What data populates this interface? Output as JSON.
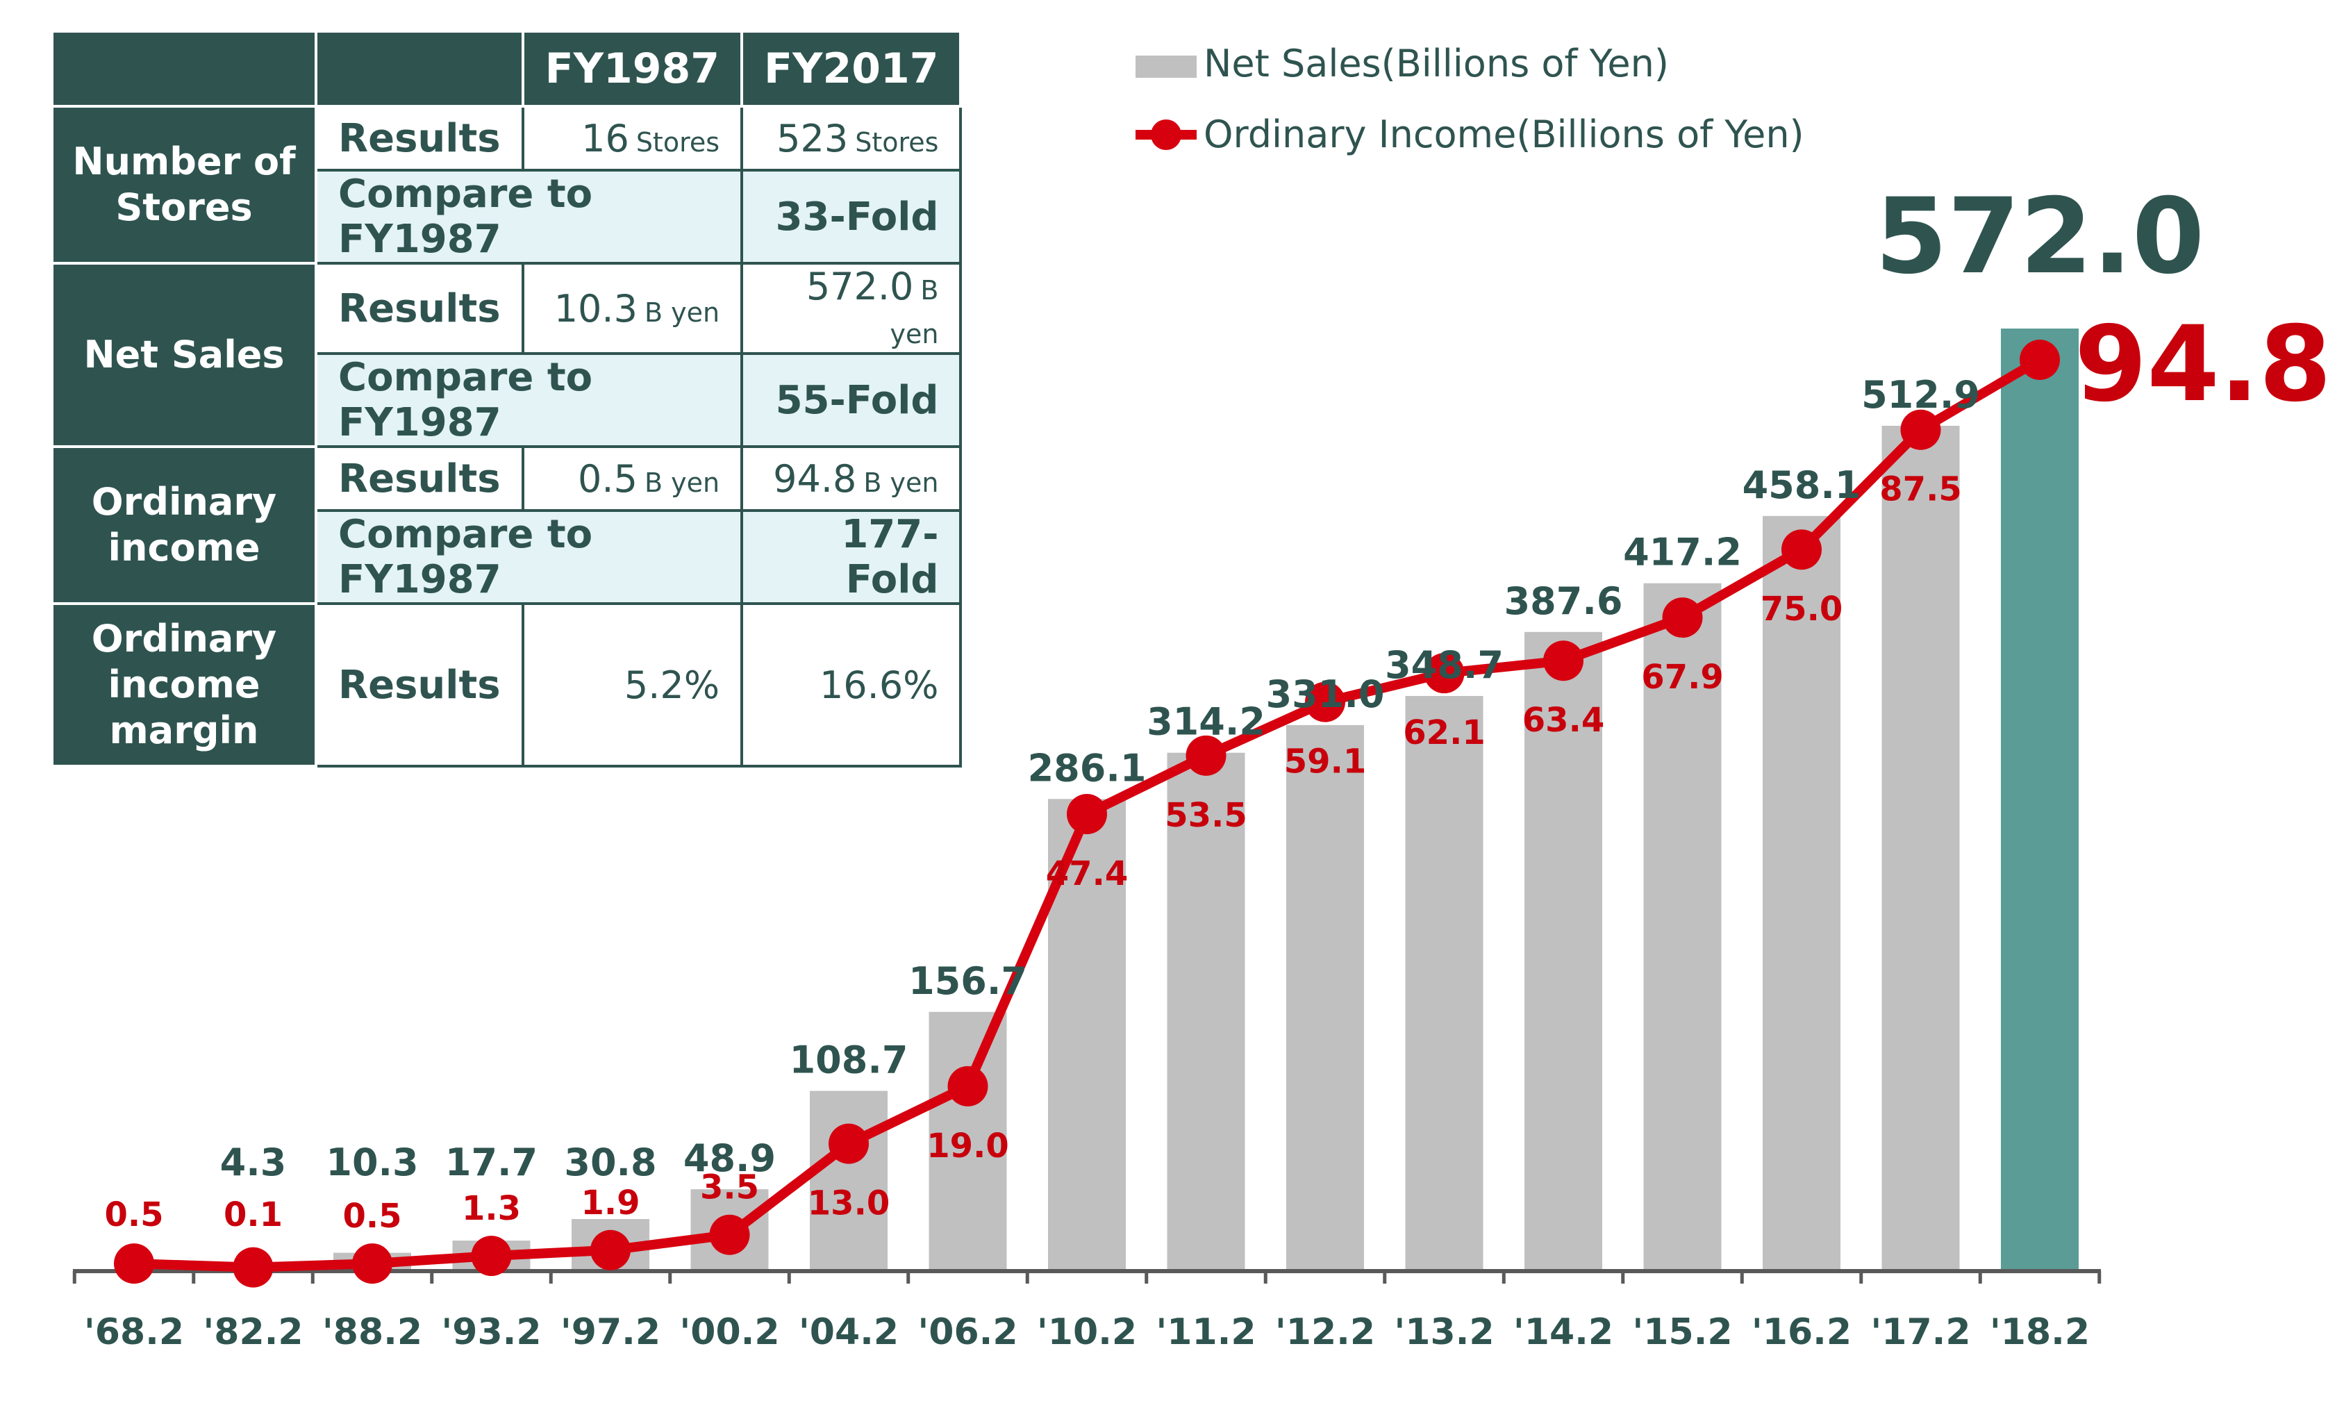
{
  "table": {
    "headers": [
      "",
      "",
      "FY1987",
      "FY2017"
    ],
    "rows": [
      {
        "group": "Number of Stores",
        "label": "Results",
        "fy1987": "16",
        "fy1987_unit": "Stores",
        "fy2017": "523",
        "fy2017_unit": "Stores"
      },
      {
        "label": "Compare to FY1987",
        "value": "33-Fold"
      },
      {
        "group": "Net Sales",
        "label": "Results",
        "fy1987": "10.3",
        "fy1987_unit": "B yen",
        "fy2017": "572.0",
        "fy2017_unit": "B yen"
      },
      {
        "label": "Compare to FY1987",
        "value": "55-Fold"
      },
      {
        "group": "Ordinary income",
        "label": "Results",
        "fy1987": "0.5",
        "fy1987_unit": "B yen",
        "fy2017": "94.8",
        "fy2017_unit": "B yen"
      },
      {
        "label": "Compare to FY1987",
        "value": "177-Fold"
      },
      {
        "group": "Ordinary income margin",
        "label": "Results",
        "fy1987": "5.2%",
        "fy2017": "16.6%"
      }
    ]
  },
  "chart_data": {
    "type": "bar",
    "categories": [
      "'68.2",
      "'82.2",
      "'88.2",
      "'93.2",
      "'97.2",
      "'00.2",
      "'04.2",
      "'06.2",
      "'10.2",
      "'11.2",
      "'12.2",
      "'13.2",
      "'14.2",
      "'15.2",
      "'16.2",
      "'17.2",
      "'18.2"
    ],
    "series": [
      {
        "name": "Net Sales(Billions of Yen)",
        "type": "bar",
        "values": [
          null,
          4.3,
          10.3,
          17.7,
          30.8,
          48.9,
          108.7,
          156.7,
          286.1,
          314.2,
          331.0,
          348.7,
          387.6,
          417.2,
          458.1,
          512.9,
          572.0
        ],
        "labels": [
          "",
          "4.3",
          "10.3",
          "17.7",
          "30.8",
          "48.9",
          "108.7",
          "156.7",
          "286.1",
          "314.2",
          "331.0",
          "348.7",
          "387.6",
          "417.2",
          "458.1",
          "512.9",
          "572.0"
        ],
        "color": "#c0c0c0",
        "highlight_color": "#5b9c97"
      },
      {
        "name": "Ordinary Income(Billions of Yen)",
        "type": "line",
        "values": [
          0.5,
          0.1,
          0.5,
          1.3,
          1.9,
          3.5,
          13.0,
          19.0,
          47.4,
          53.5,
          59.1,
          62.1,
          63.4,
          67.9,
          75.0,
          87.5,
          94.8
        ],
        "labels": [
          "0.5",
          "0.1",
          "0.5",
          "1.3",
          "1.9",
          "3.5",
          "13.0",
          "19.0",
          "47.4",
          "53.5",
          "59.1",
          "62.1",
          "63.4",
          "67.9",
          "75.0",
          "87.5",
          "94.8"
        ],
        "color": "#d7000f"
      }
    ],
    "ylim": [
      0,
      1150
    ],
    "grid": false,
    "legend": "top-right",
    "title": "",
    "xlabel": "",
    "ylabel": "",
    "colors": {
      "label_dark": "#2f5450",
      "label_red": "#c8000c",
      "axis": "#595959"
    }
  }
}
